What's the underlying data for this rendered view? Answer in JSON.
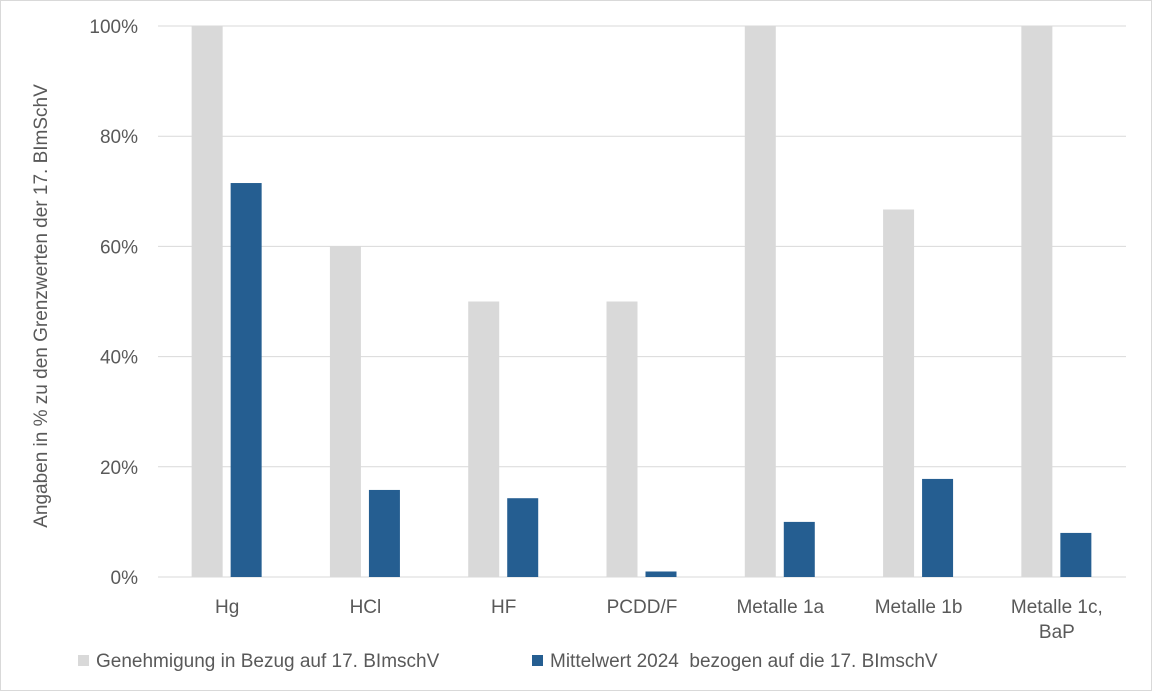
{
  "chart_data": {
    "type": "bar",
    "categories": [
      [
        "Hg"
      ],
      [
        "HCl"
      ],
      [
        "HF"
      ],
      [
        "PCDD/F"
      ],
      [
        "Metalle 1a"
      ],
      [
        "Metalle 1b"
      ],
      [
        "Metalle 1c,",
        "BaP"
      ]
    ],
    "series": [
      {
        "name": "Genehmigung in Bezug auf 17. BImschV",
        "color": "#d9d9d9",
        "values": [
          100,
          60,
          50,
          50,
          100,
          66.7,
          100
        ]
      },
      {
        "name": "Mittelwert 2024  bezogen auf die 17. BImschV",
        "color": "#255e91",
        "values": [
          71.5,
          15.8,
          14.3,
          1.0,
          10.0,
          17.8,
          8.0
        ]
      }
    ],
    "ylabel": "Angaben in % zu den Grenzwerten der 17. BImSchV",
    "yticks": [
      "0%",
      "20%",
      "40%",
      "60%",
      "80%",
      "100%"
    ],
    "ylim": [
      0,
      100
    ],
    "grid": true,
    "legend_position": "bottom"
  }
}
